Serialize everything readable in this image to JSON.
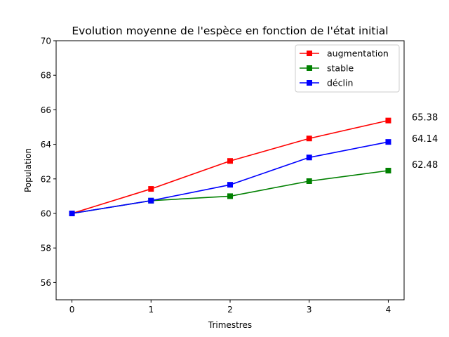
{
  "chart_data": {
    "type": "line",
    "title": "Evolution moyenne de l'espèce en fonction de l'état initial",
    "xlabel": "Trimestres",
    "ylabel": "Population",
    "x": [
      0,
      1,
      2,
      3,
      4
    ],
    "x_ticks": [
      "0",
      "1",
      "2",
      "3",
      "4"
    ],
    "y_ticks": [
      "56",
      "58",
      "60",
      "62",
      "64",
      "66",
      "68",
      "70"
    ],
    "xlim": [
      -0.2,
      4.2
    ],
    "ylim": [
      55,
      70
    ],
    "grid": false,
    "legend_position": "top-right",
    "series": [
      {
        "name": "augmentation",
        "color": "#ff0000",
        "marker": "square",
        "values": [
          60.0,
          61.42,
          63.04,
          64.34,
          65.38
        ]
      },
      {
        "name": "stable",
        "color": "#008000",
        "marker": "square",
        "values": [
          60.0,
          60.74,
          61.0,
          61.87,
          62.48
        ]
      },
      {
        "name": "déclin",
        "color": "#0000ff",
        "marker": "square",
        "values": [
          60.0,
          60.74,
          61.66,
          63.24,
          64.14
        ]
      }
    ],
    "end_labels": [
      "65.38",
      "64.14",
      "62.48"
    ]
  }
}
